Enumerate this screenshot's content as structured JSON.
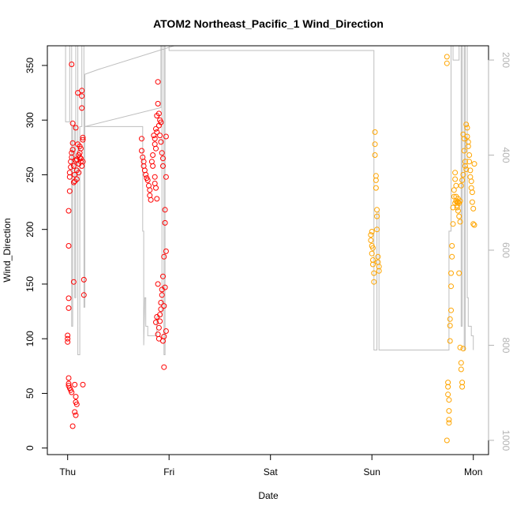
{
  "chart_data": {
    "type": "scatter",
    "title": "ATOM2 Northeast_Pacific_1 Wind_Direction",
    "xlabel": "Date",
    "ylabel": "Wind_Direction",
    "x_unit": "days after Thu 00:00",
    "x_ticks": [
      {
        "value": 0,
        "label": "Thu"
      },
      {
        "value": 1,
        "label": "Fri"
      },
      {
        "value": 2,
        "label": "Sat"
      },
      {
        "value": 3,
        "label": "Sun"
      },
      {
        "value": 4,
        "label": "Mon"
      }
    ],
    "xlim": [
      -0.2,
      4.15
    ],
    "ylim": [
      -6,
      368
    ],
    "y_ticks": [
      0,
      50,
      100,
      150,
      200,
      250,
      300,
      350
    ],
    "y2_ticks": [
      200,
      400,
      600,
      800,
      1000
    ],
    "y2lim": [
      -1030,
      -170
    ],
    "grid": false,
    "legend": "none",
    "colors": {
      "series1": "#ff0000",
      "series2": "#ffa500",
      "line": "#bebebe"
    },
    "series": [
      {
        "color": "#ff0000",
        "points": [
          [
            0.0,
            97
          ],
          [
            0.0,
            100
          ],
          [
            0.0,
            103
          ],
          [
            0.01,
            128
          ],
          [
            0.01,
            137
          ],
          [
            0.01,
            185
          ],
          [
            0.01,
            217
          ],
          [
            0.02,
            235
          ],
          [
            0.02,
            248
          ],
          [
            0.02,
            252
          ],
          [
            0.03,
            257
          ],
          [
            0.03,
            262
          ],
          [
            0.04,
            266
          ],
          [
            0.04,
            270
          ],
          [
            0.05,
            273
          ],
          [
            0.05,
            279
          ],
          [
            0.06,
            258
          ],
          [
            0.06,
            243
          ],
          [
            0.04,
            351
          ],
          [
            0.05,
            297
          ],
          [
            0.06,
            152
          ],
          [
            0.08,
            293
          ],
          [
            0.08,
            263
          ],
          [
            0.09,
            254
          ],
          [
            0.1,
            278
          ],
          [
            0.1,
            325
          ],
          [
            0.11,
            260
          ],
          [
            0.12,
            266
          ],
          [
            0.12,
            270
          ],
          [
            0.13,
            274
          ],
          [
            0.13,
            262
          ],
          [
            0.14,
            258
          ],
          [
            0.14,
            311
          ],
          [
            0.14,
            322
          ],
          [
            0.14,
            327
          ],
          [
            0.15,
            284
          ],
          [
            0.15,
            282
          ],
          [
            0.16,
            140
          ],
          [
            0.16,
            154
          ],
          [
            0.07,
            250
          ],
          [
            0.07,
            244
          ],
          [
            0.09,
            246
          ],
          [
            0.11,
            252
          ],
          [
            0.12,
            276
          ],
          [
            0.01,
            64
          ],
          [
            0.01,
            59
          ],
          [
            0.01,
            57
          ],
          [
            0.02,
            55
          ],
          [
            0.03,
            53
          ],
          [
            0.04,
            51
          ],
          [
            0.05,
            20
          ],
          [
            0.07,
            58
          ],
          [
            0.08,
            47
          ],
          [
            0.08,
            42
          ],
          [
            0.09,
            40
          ],
          [
            0.07,
            33
          ],
          [
            0.08,
            30
          ],
          [
            0.15,
            58
          ],
          [
            0.09,
            264
          ],
          [
            0.11,
            268
          ],
          [
            0.13,
            265
          ],
          [
            0.15,
            262
          ]
        ]
      },
      {
        "color": "#ff0000",
        "points": [
          [
            0.73,
            283
          ],
          [
            0.73,
            272
          ],
          [
            0.74,
            266
          ],
          [
            0.75,
            262
          ],
          [
            0.75,
            258
          ],
          [
            0.76,
            254
          ],
          [
            0.77,
            250
          ],
          [
            0.78,
            247
          ],
          [
            0.79,
            245
          ],
          [
            0.8,
            240
          ],
          [
            0.81,
            236
          ],
          [
            0.81,
            231
          ],
          [
            0.82,
            227
          ],
          [
            0.83,
            262
          ],
          [
            0.84,
            268
          ],
          [
            0.84,
            258
          ],
          [
            0.85,
            286
          ],
          [
            0.86,
            283
          ],
          [
            0.86,
            278
          ],
          [
            0.87,
            274
          ],
          [
            0.87,
            292
          ],
          [
            0.88,
            304
          ],
          [
            0.88,
            289
          ],
          [
            0.89,
            335
          ],
          [
            0.89,
            315
          ],
          [
            0.9,
            306
          ],
          [
            0.9,
            295
          ],
          [
            0.91,
            300
          ],
          [
            0.91,
            286
          ],
          [
            0.92,
            298
          ],
          [
            0.92,
            280
          ],
          [
            0.93,
            270
          ],
          [
            0.94,
            265
          ],
          [
            0.94,
            258
          ],
          [
            0.86,
            248
          ],
          [
            0.86,
            242
          ],
          [
            0.87,
            238
          ],
          [
            0.88,
            228
          ],
          [
            0.89,
            150
          ],
          [
            0.89,
            104
          ],
          [
            0.9,
            100
          ],
          [
            0.9,
            110
          ],
          [
            0.91,
            116
          ],
          [
            0.91,
            122
          ],
          [
            0.92,
            127
          ],
          [
            0.92,
            133
          ],
          [
            0.93,
            140
          ],
          [
            0.93,
            145
          ],
          [
            0.94,
            157
          ],
          [
            0.94,
            98
          ],
          [
            0.95,
            102
          ],
          [
            0.95,
            130
          ],
          [
            0.95,
            175
          ],
          [
            0.96,
            206
          ],
          [
            0.96,
            218
          ],
          [
            0.97,
            248
          ],
          [
            0.97,
            285
          ],
          [
            0.95,
            74
          ],
          [
            0.97,
            180
          ],
          [
            0.97,
            107
          ],
          [
            0.96,
            147
          ],
          [
            0.88,
            120
          ],
          [
            0.87,
            115
          ]
        ]
      },
      {
        "color": "#ffa500",
        "points": [
          [
            2.99,
            195
          ],
          [
            2.99,
            190
          ],
          [
            3.0,
            185
          ],
          [
            3.0,
            178
          ],
          [
            3.01,
            172
          ],
          [
            3.01,
            168
          ],
          [
            3.02,
            160
          ],
          [
            3.02,
            152
          ],
          [
            3.03,
            278
          ],
          [
            3.03,
            289
          ],
          [
            3.03,
            268
          ],
          [
            3.04,
            245
          ],
          [
            3.04,
            238
          ],
          [
            3.05,
            218
          ],
          [
            3.05,
            212
          ],
          [
            3.06,
            175
          ],
          [
            3.06,
            170
          ],
          [
            3.07,
            166
          ],
          [
            3.07,
            162
          ],
          [
            3.0,
            198
          ],
          [
            3.01,
            183
          ],
          [
            3.04,
            249
          ],
          [
            3.05,
            200
          ]
        ]
      },
      {
        "color": "#ffa500",
        "points": [
          [
            3.74,
            358
          ],
          [
            3.74,
            352
          ],
          [
            3.75,
            60
          ],
          [
            3.75,
            56
          ],
          [
            3.75,
            49
          ],
          [
            3.76,
            44
          ],
          [
            3.76,
            34
          ],
          [
            3.76,
            26
          ],
          [
            3.76,
            23
          ],
          [
            3.74,
            7
          ],
          [
            3.77,
            98
          ],
          [
            3.77,
            112
          ],
          [
            3.77,
            118
          ],
          [
            3.78,
            126
          ],
          [
            3.78,
            148
          ],
          [
            3.78,
            160
          ],
          [
            3.79,
            175
          ],
          [
            3.79,
            185
          ],
          [
            3.8,
            205
          ],
          [
            3.8,
            220
          ],
          [
            3.81,
            230
          ],
          [
            3.81,
            236
          ],
          [
            3.82,
            252
          ],
          [
            3.82,
            246
          ],
          [
            3.83,
            240
          ],
          [
            3.83,
            230
          ],
          [
            3.84,
            225
          ],
          [
            3.84,
            220
          ],
          [
            3.85,
            228
          ],
          [
            3.85,
            217
          ],
          [
            3.86,
            160
          ],
          [
            3.86,
            212
          ],
          [
            3.87,
            207
          ],
          [
            3.87,
            92
          ],
          [
            3.88,
            78
          ],
          [
            3.88,
            72
          ],
          [
            3.89,
            60
          ],
          [
            3.89,
            56
          ],
          [
            3.9,
            91
          ],
          [
            3.9,
            287
          ],
          [
            3.91,
            283
          ],
          [
            3.91,
            272
          ],
          [
            3.92,
            262
          ],
          [
            3.92,
            258
          ],
          [
            3.93,
            255
          ],
          [
            3.93,
            296
          ],
          [
            3.94,
            293
          ],
          [
            3.94,
            285
          ],
          [
            3.95,
            280
          ],
          [
            3.95,
            276
          ],
          [
            3.96,
            268
          ],
          [
            3.96,
            262
          ],
          [
            3.97,
            254
          ],
          [
            3.97,
            248
          ],
          [
            3.98,
            244
          ],
          [
            3.98,
            238
          ],
          [
            3.99,
            234
          ],
          [
            3.99,
            225
          ],
          [
            4.0,
            219
          ],
          [
            4.0,
            205
          ],
          [
            4.01,
            204
          ],
          [
            4.01,
            260
          ],
          [
            3.82,
            224
          ],
          [
            3.83,
            226
          ],
          [
            3.84,
            222
          ],
          [
            3.85,
            225
          ],
          [
            3.86,
            224
          ],
          [
            3.87,
            226
          ],
          [
            3.88,
            240
          ],
          [
            3.89,
            245
          ],
          [
            3.9,
            250
          ]
        ]
      }
    ],
    "line": {
      "color": "#bebebe",
      "secondary_axis": true,
      "points": [
        [
          -0.02,
          -165
        ],
        [
          -0.02,
          -330
        ],
        [
          0.02,
          -330
        ],
        [
          0.02,
          -165
        ],
        [
          0.04,
          -165
        ],
        [
          0.04,
          -760
        ],
        [
          0.05,
          -760
        ],
        [
          0.05,
          -340
        ],
        [
          0.07,
          -340
        ],
        [
          0.07,
          -700
        ],
        [
          0.08,
          -700
        ],
        [
          0.08,
          -165
        ],
        [
          0.1,
          -165
        ],
        [
          0.1,
          -820
        ],
        [
          0.12,
          -820
        ],
        [
          0.12,
          -340
        ],
        [
          0.14,
          -340
        ],
        [
          0.14,
          -165
        ],
        [
          0.16,
          -165
        ],
        [
          0.16,
          -720
        ],
        [
          0.17,
          -720
        ],
        [
          0.17,
          -230
        ],
        [
          0.3,
          -220
        ],
        [
          1.05,
          -170
        ],
        [
          1.05,
          -165
        ],
        [
          0.92,
          -165
        ],
        [
          0.92,
          -300
        ],
        [
          0.17,
          -340
        ],
        [
          0.74,
          -340
        ],
        [
          0.74,
          -560
        ],
        [
          0.75,
          -560
        ],
        [
          0.75,
          -800
        ],
        [
          0.76,
          -700
        ],
        [
          0.77,
          -700
        ],
        [
          0.77,
          -760
        ],
        [
          0.79,
          -760
        ],
        [
          0.79,
          -780
        ],
        [
          0.88,
          -780
        ],
        [
          0.88,
          -740
        ],
        [
          0.93,
          -740
        ],
        [
          0.93,
          -165
        ],
        [
          0.95,
          -165
        ],
        [
          0.95,
          -820
        ],
        [
          0.96,
          -820
        ],
        [
          0.96,
          -165
        ],
        [
          1.0,
          -165
        ],
        [
          1.0,
          -180
        ],
        [
          3.02,
          -180
        ],
        [
          3.02,
          -810
        ],
        [
          3.05,
          -810
        ],
        [
          3.05,
          -520
        ],
        [
          3.07,
          -520
        ],
        [
          3.07,
          -810
        ],
        [
          3.76,
          -810
        ],
        [
          3.76,
          -560
        ],
        [
          3.78,
          -560
        ],
        [
          3.78,
          -165
        ],
        [
          3.8,
          -165
        ],
        [
          3.8,
          -200
        ],
        [
          3.86,
          -200
        ],
        [
          3.86,
          -165
        ],
        [
          3.88,
          -165
        ],
        [
          3.88,
          -760
        ],
        [
          3.89,
          -760
        ],
        [
          3.89,
          -165
        ],
        [
          3.91,
          -165
        ],
        [
          3.91,
          -810
        ],
        [
          3.92,
          -810
        ],
        [
          3.92,
          -165
        ],
        [
          3.94,
          -165
        ],
        [
          3.94,
          -700
        ],
        [
          3.95,
          -700
        ],
        [
          3.95,
          -760
        ],
        [
          3.98,
          -760
        ],
        [
          3.98,
          -780
        ],
        [
          4.0,
          -780
        ],
        [
          4.0,
          -810
        ]
      ]
    }
  }
}
